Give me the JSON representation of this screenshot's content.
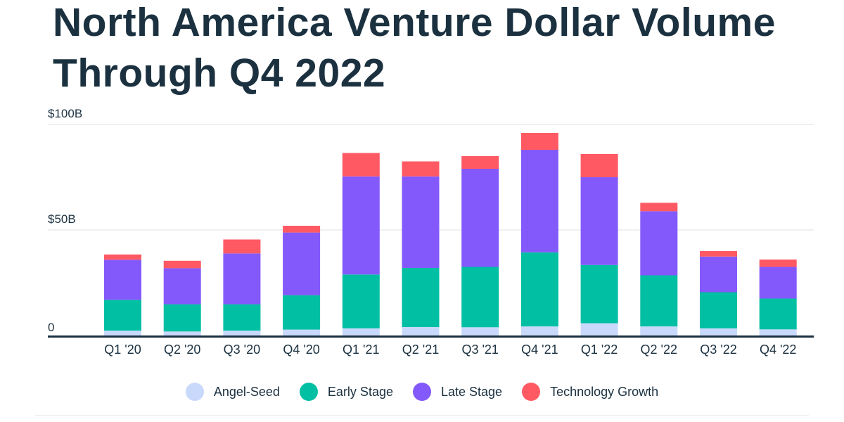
{
  "chart_data": {
    "type": "bar",
    "stacked": true,
    "title": "North America Venture Dollar Volume Through Q4 2022",
    "xlabel": "",
    "ylabel": "",
    "ylim": [
      0,
      100
    ],
    "yticks": [
      {
        "value": 0,
        "label": "0"
      },
      {
        "value": 50,
        "label": "$50B"
      },
      {
        "value": 100,
        "label": "$100B"
      }
    ],
    "grid": true,
    "legend_position": "bottom-center",
    "categories": [
      "Q1 '20",
      "Q2 '20",
      "Q3 '20",
      "Q4 '20",
      "Q1 '21",
      "Q2 '21",
      "Q3 '21",
      "Q4 '21",
      "Q1 '22",
      "Q2 '22",
      "Q3 '22",
      "Q4 '22"
    ],
    "series": [
      {
        "name": "Angel-Seed",
        "color": "#c9d9fb",
        "values": [
          2.3,
          1.9,
          2.3,
          2.8,
          3.4,
          4.0,
          3.9,
          4.3,
          5.8,
          4.3,
          3.4,
          2.9
        ]
      },
      {
        "name": "Early Stage",
        "color": "#00bfa3",
        "values": [
          14.6,
          12.9,
          12.5,
          16.3,
          25.5,
          28.0,
          28.6,
          35.1,
          27.6,
          24.2,
          17.1,
          14.6
        ]
      },
      {
        "name": "Late Stage",
        "color": "#8459fb",
        "values": [
          19.0,
          17.1,
          24.1,
          29.7,
          46.5,
          43.4,
          46.5,
          48.6,
          41.6,
          30.4,
          16.9,
          15.0
        ]
      },
      {
        "name": "Technology Growth",
        "color": "#ff5a64",
        "values": [
          2.5,
          3.5,
          6.6,
          3.2,
          11.1,
          7.1,
          6.0,
          8.0,
          11.0,
          4.0,
          2.6,
          3.5
        ]
      }
    ]
  }
}
